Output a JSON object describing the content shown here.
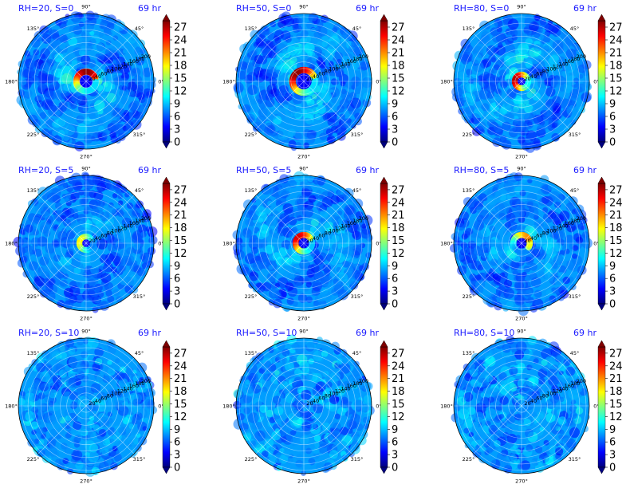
{
  "colors": {
    "title": "#1a1aff",
    "grid": "#ffffff",
    "colormap": [
      "#00007f",
      "#0000ff",
      "#007fff",
      "#00ffff",
      "#7fff7f",
      "#ffff00",
      "#ff7f00",
      "#ff0000",
      "#7f0000"
    ]
  },
  "chart_data": [
    {
      "type": "heatmap",
      "projection": "polar",
      "title": "RH=20, S=0",
      "time_label": "69 hr",
      "angle_ticks": [
        "0°",
        "45°",
        "90°",
        "135°",
        "180°",
        "225°",
        "270°",
        "315°"
      ],
      "radial_ticks": [
        "20",
        "40",
        "60",
        "80",
        "100",
        "120",
        "140",
        "160",
        "180",
        "200"
      ],
      "colorbar": {
        "ticks": [
          "0",
          "3",
          "6",
          "9",
          "12",
          "15",
          "18",
          "21",
          "24",
          "27"
        ],
        "range": [
          0,
          28.5
        ],
        "extend": "both"
      },
      "core": {
        "radius": [
          25,
          35
        ],
        "peak": 28,
        "opening_deg": [
          -80,
          20
        ]
      },
      "field": "compact intense ring, strong on west side, broad spiral bands"
    },
    {
      "type": "heatmap",
      "projection": "polar",
      "title": "RH=50, S=0",
      "time_label": "69 hr",
      "angle_ticks": [
        "0°",
        "45°",
        "90°",
        "135°",
        "180°",
        "225°",
        "270°",
        "315°"
      ],
      "radial_ticks": [
        "20",
        "40",
        "60",
        "80",
        "100",
        "120",
        "140",
        "160",
        "180",
        "200"
      ],
      "colorbar": {
        "ticks": [
          "0",
          "3",
          "6",
          "9",
          "12",
          "15",
          "18",
          "21",
          "24",
          "27"
        ],
        "range": [
          0,
          28.5
        ],
        "extend": "both"
      },
      "core": {
        "radius": [
          30,
          40
        ],
        "peak": 28,
        "opening_deg": [
          -40,
          30
        ]
      },
      "field": "intense ring, wider spiral bands to north-east"
    },
    {
      "type": "heatmap",
      "projection": "polar",
      "title": "RH=80, S=0",
      "time_label": "69 hr",
      "angle_ticks": [
        "0°",
        "45°",
        "90°",
        "135°",
        "180°",
        "225°",
        "270°",
        "315°"
      ],
      "radial_ticks": [
        "20",
        "40",
        "60",
        "80",
        "100",
        "120",
        "140",
        "160",
        "180",
        "200"
      ],
      "colorbar": {
        "ticks": [
          "0",
          "3",
          "6",
          "9",
          "12",
          "15",
          "18",
          "21",
          "24",
          "27"
        ],
        "range": [
          0,
          28.5
        ],
        "extend": "both"
      },
      "core": {
        "radius": [
          15,
          25
        ],
        "peak": 27,
        "opening_deg": [
          0,
          0
        ]
      },
      "field": "small compact core, weak outer field"
    },
    {
      "type": "heatmap",
      "projection": "polar",
      "title": "RH=20, S=5",
      "time_label": "69 hr",
      "angle_ticks": [
        "0°",
        "45°",
        "90°",
        "135°",
        "180°",
        "225°",
        "270°",
        "315°"
      ],
      "radial_ticks": [
        "20",
        "40",
        "60",
        "80",
        "100",
        "120",
        "140",
        "160",
        "180",
        "200"
      ],
      "colorbar": {
        "ticks": [
          "0",
          "3",
          "6",
          "9",
          "12",
          "15",
          "18",
          "21",
          "24",
          "27"
        ],
        "range": [
          0,
          28.5
        ],
        "extend": "both"
      },
      "core": {
        "radius": [
          15,
          25
        ],
        "peak": 18,
        "opening_deg": [
          0,
          0
        ]
      },
      "field": "weaker core, broad spiral bands"
    },
    {
      "type": "heatmap",
      "projection": "polar",
      "title": "RH=50, S=5",
      "time_label": "69 hr",
      "angle_ticks": [
        "0°",
        "45°",
        "90°",
        "135°",
        "180°",
        "225°",
        "270°",
        "315°"
      ],
      "radial_ticks": [
        "20",
        "40",
        "60",
        "80",
        "100",
        "120",
        "140",
        "160",
        "180",
        "200"
      ],
      "colorbar": {
        "ticks": [
          "0",
          "3",
          "6",
          "9",
          "12",
          "15",
          "18",
          "21",
          "24",
          "27"
        ],
        "range": [
          0,
          28.5
        ],
        "extend": "both"
      },
      "core": {
        "radius": [
          20,
          30
        ],
        "peak": 26,
        "opening_deg": [
          -30,
          40
        ]
      },
      "field": "ring strong on west side, spiral bands"
    },
    {
      "type": "heatmap",
      "projection": "polar",
      "title": "RH=80, S=5",
      "time_label": "69 hr",
      "angle_ticks": [
        "0°",
        "45°",
        "90°",
        "135°",
        "180°",
        "225°",
        "270°",
        "315°"
      ],
      "radial_ticks": [
        "20",
        "40",
        "60",
        "80",
        "100",
        "120",
        "140",
        "160",
        "180",
        "200"
      ],
      "colorbar": {
        "ticks": [
          "0",
          "3",
          "6",
          "9",
          "12",
          "15",
          "18",
          "21",
          "24",
          "27"
        ],
        "range": [
          0,
          28.5
        ],
        "extend": "both"
      },
      "core": {
        "radius": [
          20,
          30
        ],
        "peak": 21,
        "opening_deg": [
          -120,
          -30
        ]
      },
      "field": "asymmetric core to south-west, sparse cells"
    },
    {
      "type": "heatmap",
      "projection": "polar",
      "title": "RH=20, S=10",
      "time_label": "69 hr",
      "angle_ticks": [
        "0°",
        "45°",
        "90°",
        "135°",
        "180°",
        "225°",
        "270°",
        "315°"
      ],
      "radial_ticks": [
        "20",
        "40",
        "60",
        "80",
        "100",
        "120",
        "140",
        "160",
        "180",
        "200"
      ],
      "colorbar": {
        "ticks": [
          "0",
          "3",
          "6",
          "9",
          "12",
          "15",
          "18",
          "21",
          "24",
          "27"
        ],
        "range": [
          0,
          28.5
        ],
        "extend": "both"
      },
      "core": {
        "radius": [
          0,
          0
        ],
        "peak": 0,
        "opening_deg": [
          0,
          0
        ]
      },
      "field": "no core, weak field, small cells to east"
    },
    {
      "type": "heatmap",
      "projection": "polar",
      "title": "RH=50, S=10",
      "time_label": "69 hr",
      "angle_ticks": [
        "0°",
        "45°",
        "90°",
        "135°",
        "180°",
        "225°",
        "270°",
        "315°"
      ],
      "radial_ticks": [
        "20",
        "40",
        "60",
        "80",
        "100",
        "120",
        "140",
        "160",
        "180",
        "200"
      ],
      "colorbar": {
        "ticks": [
          "0",
          "3",
          "6",
          "9",
          "12",
          "15",
          "18",
          "21",
          "24",
          "27"
        ],
        "range": [
          0,
          28.5
        ],
        "extend": "both"
      },
      "core": {
        "radius": [
          0,
          0
        ],
        "peak": 0,
        "opening_deg": [
          0,
          0
        ]
      },
      "field": "no core, scattered cells to north"
    },
    {
      "type": "heatmap",
      "projection": "polar",
      "title": "RH=80, S=10",
      "time_label": "69 hr",
      "angle_ticks": [
        "0°",
        "45°",
        "90°",
        "135°",
        "180°",
        "225°",
        "270°",
        "315°"
      ],
      "radial_ticks": [
        "20",
        "40",
        "60",
        "80",
        "100",
        "120",
        "140",
        "160",
        "180",
        "200"
      ],
      "colorbar": {
        "ticks": [
          "0",
          "3",
          "6",
          "9",
          "12",
          "15",
          "18",
          "21",
          "24",
          "27"
        ],
        "range": [
          0,
          28.5
        ],
        "extend": "both"
      },
      "core": {
        "radius": [
          0,
          0
        ],
        "peak": 0,
        "opening_deg": [
          0,
          0
        ]
      },
      "field": "no core, convective band to north"
    }
  ]
}
